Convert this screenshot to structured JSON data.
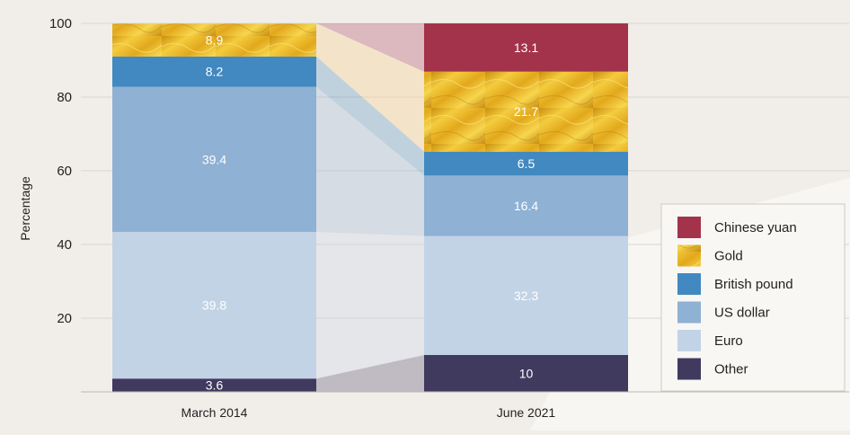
{
  "chart_data": {
    "type": "bar",
    "stacked": true,
    "ylabel": "Percentage",
    "ylim": [
      0,
      100
    ],
    "yticks": [
      20,
      40,
      60,
      80,
      100
    ],
    "categories": [
      "March 2014",
      "June 2021"
    ],
    "series": [
      {
        "key": "other",
        "name": "Other",
        "color": "#3f3a5e",
        "values": [
          3.6,
          10
        ]
      },
      {
        "key": "euro",
        "name": "Euro",
        "color": "#c3d3e6",
        "values": [
          39.8,
          32.3
        ]
      },
      {
        "key": "usd",
        "name": "US dollar",
        "color": "#8eb1d4",
        "values": [
          39.4,
          16.4
        ]
      },
      {
        "key": "gbp",
        "name": "British pound",
        "color": "#4189c0",
        "values": [
          8.2,
          6.5
        ]
      },
      {
        "key": "gold",
        "name": "Gold",
        "color": "#e8b422",
        "values": [
          8.9,
          21.7
        ]
      },
      {
        "key": "cny",
        "name": "Chinese yuan",
        "color": "#a3334b",
        "values": [
          null,
          13.1
        ]
      }
    ],
    "legend_position": "right",
    "legend_order": [
      "cny",
      "gold",
      "gbp",
      "usd",
      "euro",
      "other"
    ]
  }
}
